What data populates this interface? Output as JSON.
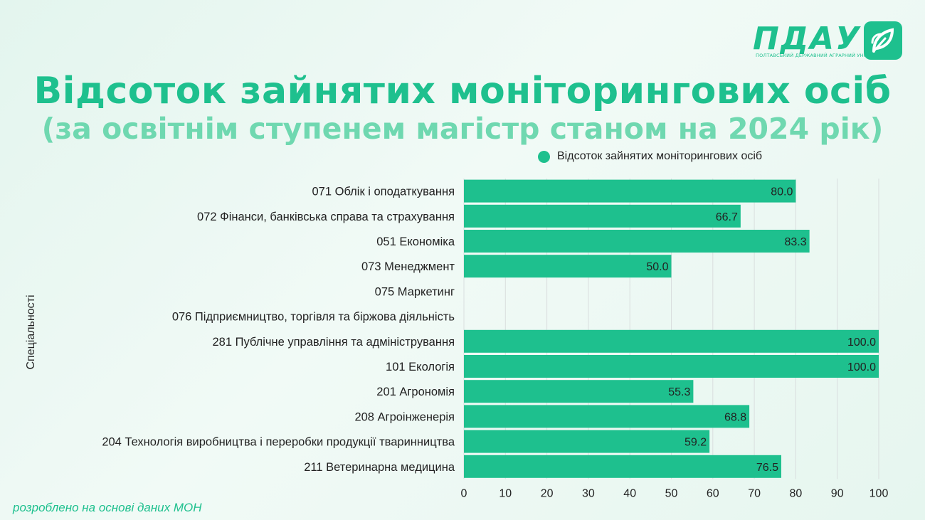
{
  "header": {
    "title": "Відсоток зайнятих моніторингових осіб",
    "subtitle": "(за освітнім ступенем магістр станом на 2024 рік)"
  },
  "logo": {
    "name": "ПДАУ",
    "subtitle": "ПОЛТАВСЬКИЙ ДЕРЖАВНИЙ АГРАРНИЙ УНІВЕРСИТЕТ",
    "icon": "leaf-icon"
  },
  "footer": {
    "note": "розроблено на основі даних МОН"
  },
  "colors": {
    "accent": "#1ec08e",
    "bar": "#1ec08e",
    "subtitle": "#6fd8b0",
    "grid": "#d9dede"
  },
  "chart_data": {
    "type": "bar",
    "orientation": "horizontal",
    "ylabel": "Спеціальності",
    "xlabel": "",
    "xlim": [
      0,
      100
    ],
    "xticks": [
      0,
      10,
      20,
      30,
      40,
      50,
      60,
      70,
      80,
      90,
      100
    ],
    "grid": true,
    "legend_position": "top-right",
    "series": [
      {
        "name": "Відсоток зайнятих моніторингових осіб",
        "color": "#1ec08e"
      }
    ],
    "categories": [
      "071 Облік і оподаткування",
      "072 Фінанси, банківська справа та страхування",
      "051 Економіка",
      "073 Менеджмент",
      "075 Маркетинг",
      "076 Підприємництво, торгівля та біржова діяльність",
      "281 Публічне управління та адміністрування",
      "101 Екологія",
      "201 Агрономія",
      "208 Агроінженерія",
      "204 Технологія виробництва і переробки продукції тваринництва",
      "211 Ветеринарна медицина"
    ],
    "values": [
      80.0,
      66.7,
      83.3,
      50.0,
      null,
      null,
      100.0,
      100.0,
      55.3,
      68.8,
      59.2,
      76.5
    ],
    "value_labels": [
      "80.0",
      "66.7",
      "83.3",
      "50.0",
      "",
      "",
      "100.0",
      "100.0",
      "55.3",
      "68.8",
      "59.2",
      "76.5"
    ]
  }
}
